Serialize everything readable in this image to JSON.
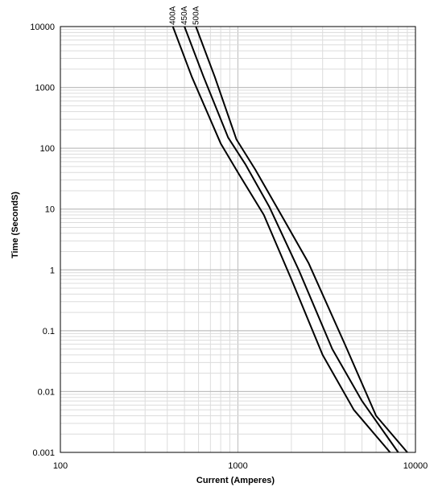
{
  "chart_data": {
    "type": "line",
    "title": "",
    "xlabel": "Current  (Amperes)",
    "ylabel": "Time (SecondS)",
    "x_scale": "log",
    "y_scale": "log",
    "xlim": [
      100,
      10000
    ],
    "ylim": [
      0.001,
      10000
    ],
    "grid": true,
    "x_tick_labels": [
      "100",
      "1000",
      "10000"
    ],
    "y_tick_labels": [
      "0.001",
      "0.01",
      "0.1",
      "1",
      "10",
      "100",
      "1000",
      "10000"
    ],
    "series": [
      {
        "name": "400A",
        "points": [
          [
            430,
            10000
          ],
          [
            550,
            1500
          ],
          [
            800,
            120
          ],
          [
            1000,
            40
          ],
          [
            1400,
            8
          ],
          [
            2000,
            0.7
          ],
          [
            3000,
            0.04
          ],
          [
            4500,
            0.005
          ],
          [
            7200,
            0.001
          ]
        ]
      },
      {
        "name": "450A",
        "points": [
          [
            500,
            10000
          ],
          [
            640,
            1500
          ],
          [
            880,
            150
          ],
          [
            1100,
            55
          ],
          [
            1500,
            11
          ],
          [
            2200,
            1
          ],
          [
            3400,
            0.05
          ],
          [
            5000,
            0.007
          ],
          [
            8000,
            0.001
          ]
        ]
      },
      {
        "name": "500A",
        "points": [
          [
            580,
            10000
          ],
          [
            740,
            1500
          ],
          [
            980,
            140
          ],
          [
            1250,
            45
          ],
          [
            1800,
            7
          ],
          [
            2500,
            1.3
          ],
          [
            4000,
            0.06
          ],
          [
            6000,
            0.004
          ],
          [
            9000,
            0.001
          ]
        ]
      }
    ]
  }
}
